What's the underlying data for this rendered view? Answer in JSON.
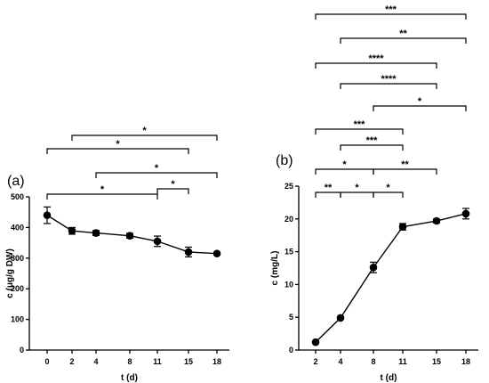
{
  "chart_data": [
    {
      "type": "line",
      "panel_label": "(a)",
      "xlabel": "t (d)",
      "ylabel": "c (μg/g DW)",
      "categories": [
        "0",
        "2",
        "4",
        "8",
        "11",
        "15",
        "18"
      ],
      "values": [
        440,
        389,
        382,
        373,
        355,
        320,
        315
      ],
      "errors": [
        27,
        11,
        8,
        8,
        17,
        16,
        4
      ],
      "ylim": [
        0,
        500
      ],
      "yticks": [
        "0",
        "100",
        "200",
        "300",
        "400",
        "500"
      ],
      "significance": [
        {
          "from": 1,
          "to": 6,
          "label": "*"
        },
        {
          "from": 0,
          "to": 5,
          "label": "*"
        },
        {
          "from": 2,
          "to": 6,
          "label": "*"
        },
        {
          "from": 0,
          "to": 4,
          "label": "*"
        },
        {
          "from": 4,
          "to": 5,
          "label": "*"
        }
      ]
    },
    {
      "type": "line",
      "panel_label": "(b)",
      "xlabel": "t (d)",
      "ylabel": "c (mg/L)",
      "categories": [
        "2",
        "4",
        "8",
        "11",
        "15",
        "18"
      ],
      "values": [
        1.2,
        4.9,
        12.6,
        18.8,
        19.7,
        20.8
      ],
      "errors": [
        0.1,
        0.2,
        0.8,
        0.5,
        0.3,
        0.8
      ],
      "ylim": [
        0,
        25
      ],
      "yticks": [
        "0",
        "5",
        "10",
        "15",
        "20",
        "25"
      ],
      "significance": [
        {
          "from": 0,
          "to": 5,
          "label": "***"
        },
        {
          "from": 1,
          "to": 5,
          "label": "**"
        },
        {
          "from": 0,
          "to": 4,
          "label": "****"
        },
        {
          "from": 1,
          "to": 4,
          "label": "****"
        },
        {
          "from": 2,
          "to": 5,
          "label": "*"
        },
        {
          "from": 0,
          "to": 3,
          "label": "***"
        },
        {
          "from": 1,
          "to": 3,
          "label": "***"
        },
        {
          "from": 0,
          "to": 2,
          "label": "*"
        },
        {
          "from": 2,
          "to": 4,
          "label": "**"
        },
        {
          "from": 0,
          "to": 1,
          "label": "**"
        },
        {
          "from": 1,
          "to": 2,
          "label": "*"
        },
        {
          "from": 2,
          "to": 3,
          "label": "*"
        }
      ]
    }
  ]
}
